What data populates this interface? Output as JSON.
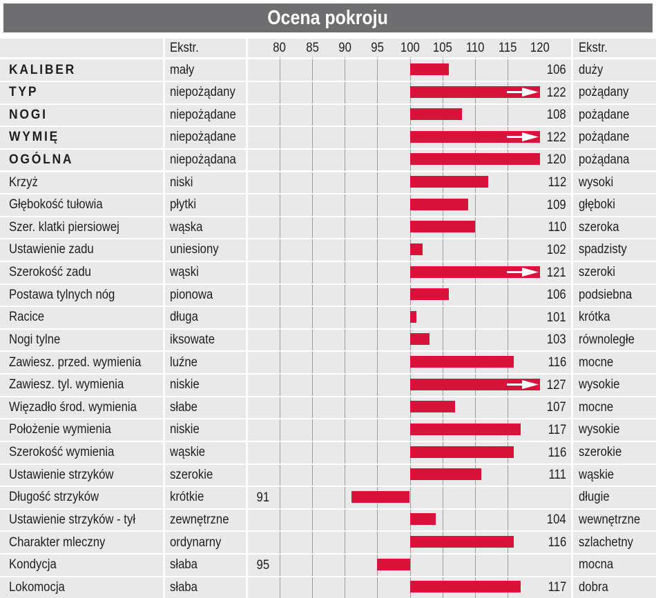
{
  "title": "Ocena pokroju",
  "header": {
    "left_extreme": "Ekstr.",
    "right_extreme": "Ekstr."
  },
  "colors": {
    "bar": "#d9123c",
    "header": "#6e6e70",
    "shade": "#e9e9e9",
    "grid": "#9a9a9a"
  },
  "chart_data": {
    "type": "bar",
    "orientation": "horizontal",
    "baseline": 100,
    "xlim": [
      80,
      120
    ],
    "ticks": [
      80,
      85,
      90,
      95,
      100,
      105,
      110,
      115,
      120
    ],
    "grid": true,
    "rows": [
      {
        "label": "KALIBER",
        "bold": true,
        "left": "mały",
        "right": "duży",
        "value": 106
      },
      {
        "label": "TYP",
        "bold": true,
        "left": "niepożądany",
        "right": "pożądany",
        "value": 122
      },
      {
        "label": "NOGI",
        "bold": true,
        "left": "niepożądane",
        "right": "pożądane",
        "value": 108
      },
      {
        "label": "WYMIĘ",
        "bold": true,
        "left": "niepożądane",
        "right": "pożądane",
        "value": 122
      },
      {
        "label": "OGÓLNA",
        "bold": true,
        "left": "niepożądana",
        "right": "pożądana",
        "value": 120
      },
      {
        "label": "Krzyż",
        "bold": false,
        "left": "niski",
        "right": "wysoki",
        "value": 112
      },
      {
        "label": "Głębokość tułowia",
        "bold": false,
        "left": "płytki",
        "right": "głęboki",
        "value": 109
      },
      {
        "label": "Szer. klatki piersiowej",
        "bold": false,
        "left": "wąska",
        "right": "szeroka",
        "value": 110
      },
      {
        "label": "Ustawienie zadu",
        "bold": false,
        "left": "uniesiony",
        "right": "spadzisty",
        "value": 102
      },
      {
        "label": "Szerokość zadu",
        "bold": false,
        "left": "wąski",
        "right": "szeroki",
        "value": 121
      },
      {
        "label": "Postawa tylnych nóg",
        "bold": false,
        "left": "pionowa",
        "right": "podsiebna",
        "value": 106
      },
      {
        "label": "Racice",
        "bold": false,
        "left": "długa",
        "right": "krótka",
        "value": 101
      },
      {
        "label": "Nogi tylne",
        "bold": false,
        "left": "iksowate",
        "right": "równoległe",
        "value": 103
      },
      {
        "label": "Zawiesz. przed. wymienia",
        "bold": false,
        "left": "luźne",
        "right": "mocne",
        "value": 116
      },
      {
        "label": "Zawiesz. tyl. wymienia",
        "bold": false,
        "left": "niskie",
        "right": "wysokie",
        "value": 127
      },
      {
        "label": "Więzadło środ. wymienia",
        "bold": false,
        "left": "słabe",
        "right": "mocne",
        "value": 107
      },
      {
        "label": "Położenie wymienia",
        "bold": false,
        "left": "niskie",
        "right": "wysokie",
        "value": 117
      },
      {
        "label": "Szerokość wymienia",
        "bold": false,
        "left": "wąskie",
        "right": "szerokie",
        "value": 116
      },
      {
        "label": "Ustawienie strzyków",
        "bold": false,
        "left": "szerokie",
        "right": "wąskie",
        "value": 111
      },
      {
        "label": "Długość strzyków",
        "bold": false,
        "left": "krótkie",
        "right": "długie",
        "value": 91
      },
      {
        "label": "Ustawienie strzyków - tył",
        "bold": false,
        "left": "zewnętrzne",
        "right": "wewnętrzne",
        "value": 104
      },
      {
        "label": "Charakter mleczny",
        "bold": false,
        "left": "ordynarny",
        "right": "szlachetny",
        "value": 116
      },
      {
        "label": "Kondycja",
        "bold": false,
        "left": "słaba",
        "right": "mocna",
        "value": 95
      },
      {
        "label": "Lokomocja",
        "bold": false,
        "left": "słaba",
        "right": "dobra",
        "value": 117
      }
    ]
  }
}
